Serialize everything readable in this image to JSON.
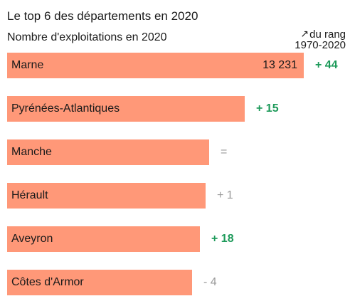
{
  "chart_data": {
    "type": "bar",
    "title": "Le top 6 des départements en 2020",
    "subtitle": "Nombre d'exploitations en 2020",
    "rank_header": [
      "du rang",
      "1970-2020"
    ],
    "categories": [
      "Marne",
      "Pyrénées-Atlantiques",
      "Manche",
      "Hérault",
      "Aveyron",
      "Côtes d'Armor"
    ],
    "values": [
      13231,
      10600,
      9000,
      8850,
      8600,
      8250
    ],
    "value_labels": [
      "13 231",
      "",
      "",
      "",
      "",
      ""
    ],
    "rank_changes": [
      "+ 44",
      "+ 15",
      "=",
      "+ 1",
      "+ 18",
      "- 4"
    ],
    "rank_direction": [
      "up",
      "up",
      "neutral",
      "neutral",
      "up",
      "neutral"
    ],
    "xlim": [
      0,
      13231
    ],
    "colors": {
      "bar": "#ff9878",
      "up": "#1d9a5a",
      "neutral": "#9a9a9a"
    }
  }
}
